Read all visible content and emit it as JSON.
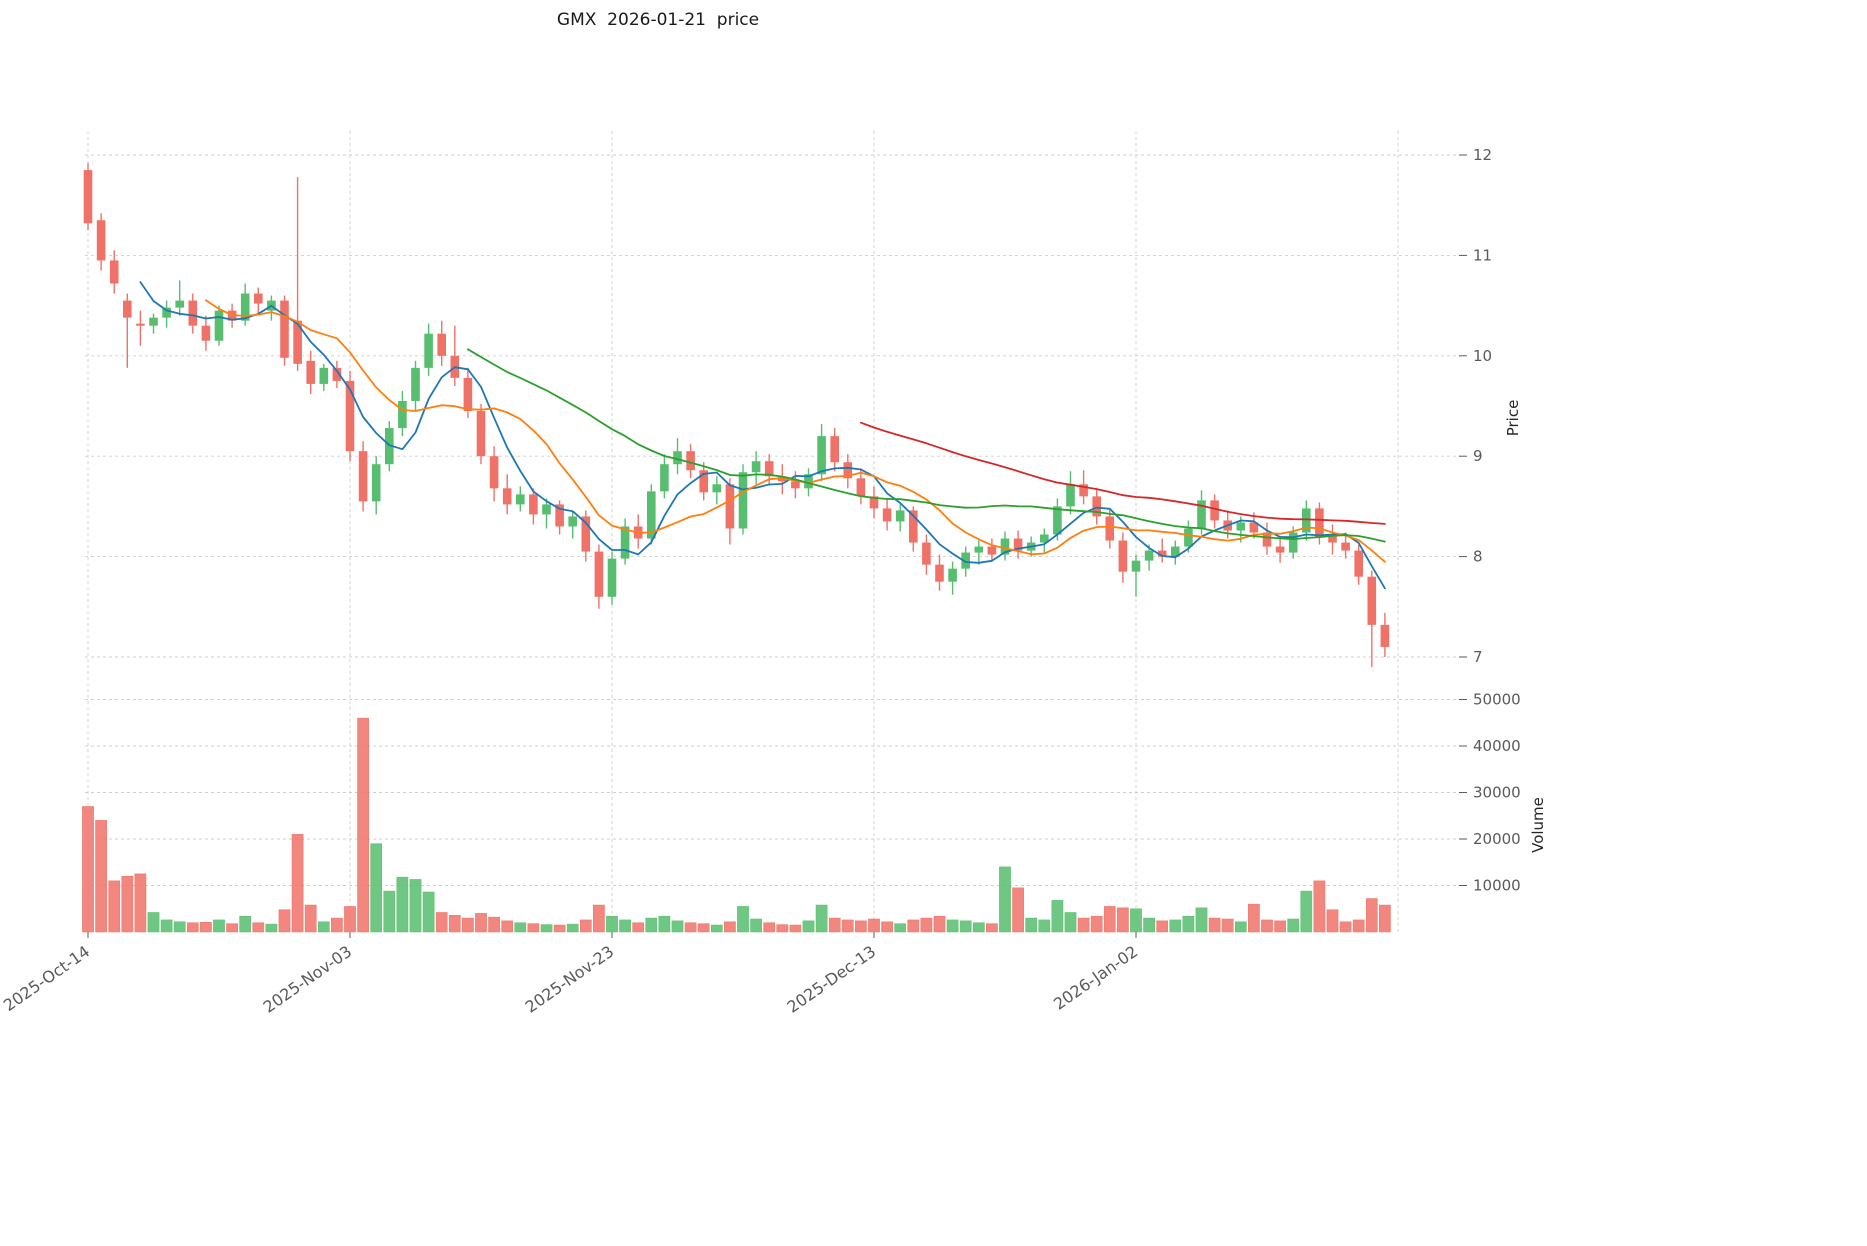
{
  "title": "GMX  2026-01-21  price",
  "axes": {
    "price_label": "Price",
    "volume_label": "Volume",
    "price_ticks": [
      12,
      11,
      10,
      9,
      8,
      7
    ],
    "volume_ticks": [
      50000,
      40000,
      30000,
      20000,
      10000
    ],
    "x_ticks": [
      {
        "index": 0,
        "label": "2025-Oct-14"
      },
      {
        "index": 20,
        "label": "2025-Nov-03"
      },
      {
        "index": 40,
        "label": "2025-Nov-23"
      },
      {
        "index": 60,
        "label": "2025-Dec-13"
      },
      {
        "index": 80,
        "label": "2026-Jan-02"
      }
    ],
    "extra_vgrid_indices": [
      100
    ]
  },
  "chart_data": {
    "type": "candlestick+volume",
    "symbol": "GMX",
    "as_of_date": "2026-01-21",
    "title": "GMX  2026-01-21  price",
    "price_ylim": [
      6.9,
      12.25
    ],
    "volume_ylim": [
      0,
      52000
    ],
    "grid": true,
    "colors": {
      "up": "#57bd6f",
      "down": "#ef7268"
    },
    "moving_averages": [
      {
        "window": 5,
        "color": "#1f77b4"
      },
      {
        "window": 10,
        "color": "#ff7f0e"
      },
      {
        "window": 30,
        "color": "#2ca02c"
      },
      {
        "window": 60,
        "color": "#d62728"
      }
    ],
    "columns": [
      "open",
      "high",
      "low",
      "close",
      "volume"
    ],
    "candles": [
      [
        11.85,
        11.92,
        11.25,
        11.32,
        27000
      ],
      [
        11.35,
        11.42,
        10.85,
        10.95,
        24000
      ],
      [
        10.95,
        11.05,
        10.62,
        10.72,
        11000
      ],
      [
        10.55,
        10.62,
        9.88,
        10.38,
        12000
      ],
      [
        10.32,
        10.45,
        10.1,
        10.3,
        12500
      ],
      [
        10.3,
        10.42,
        10.22,
        10.38,
        4200
      ],
      [
        10.38,
        10.55,
        10.28,
        10.48,
        2600
      ],
      [
        10.48,
        10.75,
        10.4,
        10.55,
        2200
      ],
      [
        10.55,
        10.62,
        10.22,
        10.3,
        2000
      ],
      [
        10.3,
        10.4,
        10.05,
        10.15,
        2100
      ],
      [
        10.15,
        10.5,
        10.1,
        10.45,
        2600
      ],
      [
        10.45,
        10.52,
        10.28,
        10.35,
        1800
      ],
      [
        10.35,
        10.72,
        10.3,
        10.62,
        3400
      ],
      [
        10.62,
        10.68,
        10.42,
        10.52,
        2000
      ],
      [
        10.45,
        10.6,
        10.35,
        10.55,
        1700
      ],
      [
        10.55,
        10.6,
        9.9,
        9.98,
        4800
      ],
      [
        10.35,
        11.78,
        9.85,
        9.92,
        21000
      ],
      [
        9.95,
        10.05,
        9.62,
        9.72,
        5800
      ],
      [
        9.72,
        9.92,
        9.65,
        9.88,
        2200
      ],
      [
        9.88,
        9.95,
        9.68,
        9.75,
        3000
      ],
      [
        9.75,
        9.85,
        8.95,
        9.05,
        5500
      ],
      [
        9.05,
        9.15,
        8.45,
        8.55,
        46000
      ],
      [
        8.55,
        9.0,
        8.42,
        8.92,
        19000
      ],
      [
        8.92,
        9.35,
        8.85,
        9.28,
        8800
      ],
      [
        9.28,
        9.65,
        9.2,
        9.55,
        11800
      ],
      [
        9.55,
        9.95,
        9.45,
        9.88,
        11300
      ],
      [
        9.88,
        10.32,
        9.8,
        10.22,
        8600
      ],
      [
        10.22,
        10.35,
        9.9,
        10.0,
        4200
      ],
      [
        10.0,
        10.3,
        9.7,
        9.78,
        3600
      ],
      [
        9.78,
        9.88,
        9.38,
        9.45,
        3000
      ],
      [
        9.45,
        9.52,
        8.92,
        9.0,
        4000
      ],
      [
        9.0,
        9.1,
        8.55,
        8.68,
        3200
      ],
      [
        8.68,
        8.82,
        8.42,
        8.52,
        2400
      ],
      [
        8.52,
        8.7,
        8.45,
        8.62,
        2000
      ],
      [
        8.62,
        8.68,
        8.32,
        8.42,
        1800
      ],
      [
        8.42,
        8.58,
        8.28,
        8.52,
        1600
      ],
      [
        8.52,
        8.56,
        8.22,
        8.3,
        1500
      ],
      [
        8.3,
        8.45,
        8.18,
        8.4,
        1700
      ],
      [
        8.4,
        8.46,
        7.95,
        8.05,
        2600
      ],
      [
        8.05,
        8.12,
        7.48,
        7.6,
        5800
      ],
      [
        7.6,
        8.05,
        7.52,
        7.98,
        3400
      ],
      [
        7.98,
        8.38,
        7.92,
        8.3,
        2600
      ],
      [
        8.3,
        8.42,
        8.08,
        8.18,
        2000
      ],
      [
        8.18,
        8.72,
        8.12,
        8.65,
        3000
      ],
      [
        8.65,
        9.02,
        8.58,
        8.92,
        3400
      ],
      [
        8.92,
        9.18,
        8.82,
        9.05,
        2400
      ],
      [
        9.05,
        9.12,
        8.78,
        8.86,
        2000
      ],
      [
        8.86,
        8.94,
        8.56,
        8.64,
        1800
      ],
      [
        8.64,
        8.8,
        8.52,
        8.72,
        1500
      ],
      [
        8.72,
        8.78,
        8.12,
        8.28,
        2200
      ],
      [
        8.28,
        8.92,
        8.22,
        8.84,
        5500
      ],
      [
        8.84,
        9.05,
        8.72,
        8.95,
        2800
      ],
      [
        8.95,
        9.02,
        8.72,
        8.8,
        2000
      ],
      [
        8.8,
        8.92,
        8.62,
        8.75,
        1600
      ],
      [
        8.75,
        8.85,
        8.58,
        8.68,
        1500
      ],
      [
        8.68,
        8.88,
        8.6,
        8.82,
        2400
      ],
      [
        8.82,
        9.32,
        8.75,
        9.2,
        5800
      ],
      [
        9.2,
        9.28,
        8.85,
        8.94,
        3000
      ],
      [
        8.94,
        9.02,
        8.68,
        8.78,
        2600
      ],
      [
        8.78,
        8.88,
        8.52,
        8.6,
        2400
      ],
      [
        8.6,
        8.7,
        8.38,
        8.48,
        2800
      ],
      [
        8.48,
        8.58,
        8.26,
        8.35,
        2200
      ],
      [
        8.35,
        8.52,
        8.25,
        8.46,
        1800
      ],
      [
        8.46,
        8.5,
        8.05,
        8.14,
        2600
      ],
      [
        8.14,
        8.22,
        7.82,
        7.92,
        3000
      ],
      [
        7.92,
        8.02,
        7.66,
        7.75,
        3400
      ],
      [
        7.75,
        7.95,
        7.62,
        7.88,
        2600
      ],
      [
        7.88,
        8.1,
        7.8,
        8.04,
        2400
      ],
      [
        8.04,
        8.16,
        7.92,
        8.1,
        2000
      ],
      [
        8.1,
        8.18,
        7.95,
        8.02,
        1800
      ],
      [
        8.02,
        8.25,
        7.96,
        8.18,
        14000
      ],
      [
        8.18,
        8.26,
        7.98,
        8.06,
        9500
      ],
      [
        8.06,
        8.2,
        8.0,
        8.14,
        3000
      ],
      [
        8.14,
        8.28,
        8.04,
        8.22,
        2600
      ],
      [
        8.22,
        8.58,
        8.16,
        8.5,
        6800
      ],
      [
        8.5,
        8.85,
        8.42,
        8.72,
        4200
      ],
      [
        8.72,
        8.86,
        8.52,
        8.6,
        3000
      ],
      [
        8.6,
        8.68,
        8.32,
        8.4,
        3400
      ],
      [
        8.4,
        8.48,
        8.08,
        8.16,
        5500
      ],
      [
        8.16,
        8.24,
        7.74,
        7.85,
        5200
      ],
      [
        7.85,
        8.02,
        7.6,
        7.96,
        5000
      ],
      [
        7.96,
        8.12,
        7.86,
        8.06,
        3000
      ],
      [
        8.06,
        8.18,
        7.94,
        8.0,
        2400
      ],
      [
        8.0,
        8.16,
        7.92,
        8.1,
        2600
      ],
      [
        8.1,
        8.36,
        8.04,
        8.28,
        3400
      ],
      [
        8.28,
        8.66,
        8.22,
        8.56,
        5200
      ],
      [
        8.56,
        8.62,
        8.28,
        8.36,
        3000
      ],
      [
        8.36,
        8.46,
        8.18,
        8.26,
        2800
      ],
      [
        8.26,
        8.4,
        8.14,
        8.34,
        2200
      ],
      [
        8.34,
        8.44,
        8.18,
        8.24,
        6000
      ],
      [
        8.24,
        8.34,
        8.02,
        8.1,
        2600
      ],
      [
        8.1,
        8.2,
        7.94,
        8.04,
        2400
      ],
      [
        8.04,
        8.3,
        7.98,
        8.24,
        2800
      ],
      [
        8.24,
        8.56,
        8.16,
        8.48,
        8800
      ],
      [
        8.48,
        8.54,
        8.12,
        8.2,
        11000
      ],
      [
        8.2,
        8.32,
        8.02,
        8.14,
        4800
      ],
      [
        8.14,
        8.24,
        7.98,
        8.06,
        2200
      ],
      [
        8.06,
        8.12,
        7.72,
        7.8,
        2600
      ],
      [
        7.8,
        7.86,
        6.9,
        7.32,
        7200
      ],
      [
        7.32,
        7.44,
        7.0,
        7.1,
        5800
      ]
    ]
  }
}
